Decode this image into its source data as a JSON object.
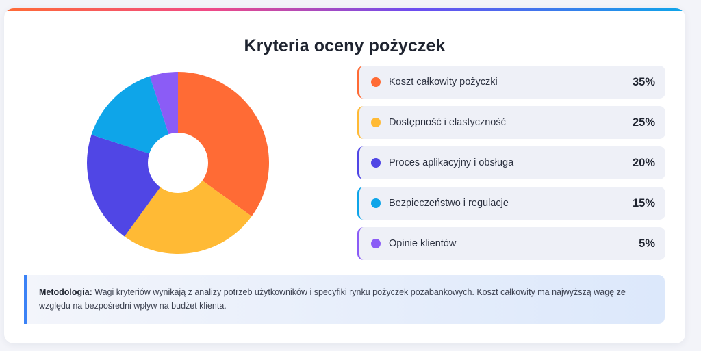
{
  "title": "Kryteria oceny pożyczek",
  "chart_data": {
    "type": "pie",
    "variant": "donut",
    "title": "Kryteria oceny pożyczek",
    "unit": "%",
    "categories": [
      "Koszt całkowity pożyczki",
      "Dostępność i elastyczność",
      "Proces aplikacyjny i obsługa",
      "Bezpieczeństwo i regulacje",
      "Opinie klientów"
    ],
    "values": [
      35,
      25,
      20,
      15,
      5
    ],
    "labels": [
      "35%",
      "25%",
      "20%",
      "15%",
      "5%"
    ],
    "colors": [
      "#ff6b35",
      "#ffba35",
      "#5046e5",
      "#0ea5e9",
      "#8b5cf6"
    ],
    "legend_position": "right"
  },
  "note": {
    "label": "Metodologia:",
    "text": "Wagi kryteriów wynikają z analizy potrzeb użytkowników i specyfiki rynku pożyczek pozabankowych. Koszt całkowity ma najwyższą wagę ze względu na bezpośredni wpływ na budżet klienta."
  }
}
